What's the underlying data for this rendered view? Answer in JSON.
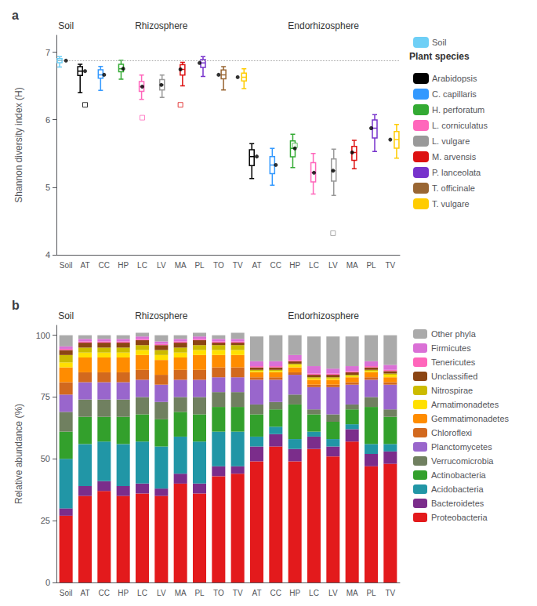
{
  "chart_data": [
    {
      "type": "boxplot",
      "title": "a",
      "ylabel": "Shannon diversity index (H)",
      "categories": [
        "Soil",
        "AT",
        "CC",
        "HP",
        "LC",
        "LV",
        "MA",
        "PL",
        "TO",
        "TV",
        "AT",
        "CC",
        "HP",
        "LC",
        "LV",
        "MA",
        "PL",
        "TV"
      ],
      "sections": [
        {
          "label": "Soil",
          "categories": 1
        },
        {
          "label": "Rhizosphere",
          "categories": 9
        },
        {
          "label": "Endorhizosphere",
          "categories": 8
        }
      ],
      "ylim": [
        4.0,
        7.25
      ],
      "yticks": [
        4,
        5,
        6,
        7
      ],
      "grid": false,
      "legend": "right",
      "legend_title": "Plant species",
      "reference_lines": [
        {
          "y": 6.88,
          "line_style": "dotted"
        }
      ],
      "series": [
        {
          "name": "Soil",
          "color": "#6ECFF6",
          "values": [
            {
              "q1": 6.845,
              "med": 6.875,
              "q3": 6.905,
              "whislo": 6.78,
              "whishi": 6.935,
              "fliers": []
            },
            null,
            null,
            null,
            null,
            null,
            null,
            null,
            null,
            null,
            null,
            null,
            null,
            null,
            null,
            null,
            null,
            null
          ]
        },
        {
          "name": "Arabidopsis",
          "color": "#000000",
          "values": [
            null,
            {
              "q1": 6.655,
              "med": 6.72,
              "q3": 6.785,
              "whislo": 6.4,
              "whishi": 6.82,
              "fliers": [
                6.22
              ]
            },
            null,
            null,
            null,
            null,
            null,
            null,
            null,
            null,
            {
              "q1": 5.32,
              "med": 5.455,
              "q3": 5.555,
              "whislo": 5.13,
              "whishi": 5.645,
              "fliers": []
            },
            null,
            null,
            null,
            null,
            null,
            null,
            null
          ]
        },
        {
          "name": "C. capillaris",
          "color": "#3399FF",
          "values": [
            null,
            null,
            {
              "q1": 6.615,
              "med": 6.665,
              "q3": 6.74,
              "whislo": 6.435,
              "whishi": 6.79,
              "fliers": []
            },
            null,
            null,
            null,
            null,
            null,
            null,
            null,
            null,
            {
              "q1": 5.2,
              "med": 5.33,
              "q3": 5.455,
              "whislo": 5.03,
              "whishi": 5.575,
              "fliers": []
            },
            null,
            null,
            null,
            null,
            null,
            null
          ]
        },
        {
          "name": "H. perforatum",
          "color": "#33AA33",
          "values": [
            null,
            null,
            null,
            {
              "q1": 6.71,
              "med": 6.755,
              "q3": 6.82,
              "whislo": 6.6,
              "whishi": 6.88,
              "fliers": []
            },
            null,
            null,
            null,
            null,
            null,
            null,
            null,
            null,
            {
              "q1": 5.45,
              "med": 5.575,
              "q3": 5.685,
              "whislo": 5.29,
              "whishi": 5.785,
              "fliers": [
                5.62
              ]
            },
            null,
            null,
            null,
            null,
            null
          ]
        },
        {
          "name": "L. corniculatus",
          "color": "#FF66BB",
          "values": [
            null,
            null,
            null,
            null,
            {
              "q1": 6.42,
              "med": 6.49,
              "q3": 6.565,
              "whislo": 6.3,
              "whishi": 6.66,
              "fliers": [
                6.03
              ]
            },
            null,
            null,
            null,
            null,
            null,
            null,
            null,
            null,
            {
              "q1": 5.08,
              "med": 5.215,
              "q3": 5.365,
              "whislo": 4.9,
              "whishi": 5.5,
              "fliers": []
            },
            null,
            null,
            null,
            null
          ]
        },
        {
          "name": "L. vulgare",
          "color": "#999999",
          "values": [
            null,
            null,
            null,
            null,
            null,
            {
              "q1": 6.44,
              "med": 6.515,
              "q3": 6.595,
              "whislo": 6.33,
              "whishi": 6.66,
              "fliers": []
            },
            null,
            null,
            null,
            null,
            null,
            null,
            null,
            null,
            {
              "q1": 5.09,
              "med": 5.245,
              "q3": 5.42,
              "whislo": 4.88,
              "whishi": 5.565,
              "fliers": [
                4.32
              ]
            },
            null,
            null,
            null
          ]
        },
        {
          "name": "M. arvensis",
          "color": "#DD1111",
          "values": [
            null,
            null,
            null,
            null,
            null,
            null,
            {
              "q1": 6.66,
              "med": 6.745,
              "q3": 6.815,
              "whislo": 6.5,
              "whishi": 6.85,
              "fliers": [
                6.22
              ]
            },
            null,
            null,
            null,
            null,
            null,
            null,
            null,
            null,
            {
              "q1": 5.4,
              "med": 5.515,
              "q3": 5.605,
              "whislo": 5.275,
              "whishi": 5.695,
              "fliers": []
            },
            null,
            null
          ]
        },
        {
          "name": "P. lanceolata",
          "color": "#7733CC",
          "values": [
            null,
            null,
            null,
            null,
            null,
            null,
            null,
            {
              "q1": 6.775,
              "med": 6.84,
              "q3": 6.89,
              "whislo": 6.64,
              "whishi": 6.935,
              "fliers": []
            },
            null,
            null,
            null,
            null,
            null,
            null,
            null,
            null,
            {
              "q1": 5.73,
              "med": 5.875,
              "q3": 5.995,
              "whislo": 5.53,
              "whishi": 6.075,
              "fliers": []
            },
            null
          ]
        },
        {
          "name": "T. officinale",
          "color": "#996633",
          "values": [
            null,
            null,
            null,
            null,
            null,
            null,
            null,
            null,
            {
              "q1": 6.605,
              "med": 6.665,
              "q3": 6.735,
              "whislo": 6.44,
              "whishi": 6.785,
              "fliers": []
            },
            null,
            null,
            null,
            null,
            null,
            null,
            null,
            null,
            null
          ]
        },
        {
          "name": "T. vulgare",
          "color": "#FFCC00",
          "values": [
            null,
            null,
            null,
            null,
            null,
            null,
            null,
            null,
            null,
            {
              "q1": 6.575,
              "med": 6.63,
              "q3": 6.69,
              "whislo": 6.46,
              "whishi": 6.755,
              "fliers": []
            },
            null,
            null,
            null,
            null,
            null,
            null,
            null,
            {
              "q1": 5.58,
              "med": 5.705,
              "q3": 5.825,
              "whislo": 5.43,
              "whishi": 5.93,
              "fliers": []
            }
          ]
        }
      ]
    },
    {
      "type": "bar",
      "stacked": true,
      "title": "b",
      "ylabel": "Relative abundance (%)",
      "categories": [
        "Soil",
        "AT",
        "CC",
        "HP",
        "LC",
        "LV",
        "MA",
        "PL",
        "TO",
        "TV",
        "AT",
        "CC",
        "HP",
        "LC",
        "LV",
        "MA",
        "PL",
        "TV"
      ],
      "sections": [
        {
          "label": "Soil",
          "categories": 1
        },
        {
          "label": "Rhizosphere",
          "categories": 9
        },
        {
          "label": "Endorhizosphere",
          "categories": 8
        }
      ],
      "ylim": [
        0,
        104
      ],
      "yticks": [
        0,
        25,
        50,
        75,
        100
      ],
      "grid": false,
      "legend": "right",
      "series": [
        {
          "name": "Proteobacteria",
          "color": "#E31A1C",
          "values": [
            27,
            35,
            37,
            35,
            36,
            35,
            40,
            36,
            43,
            44,
            49,
            55,
            49,
            54,
            51,
            57,
            47,
            48
          ]
        },
        {
          "name": "Bacteroidetes",
          "color": "#7B2D8B",
          "values": [
            3,
            4,
            4,
            4,
            4,
            3,
            4,
            4,
            4,
            3,
            6,
            5,
            5,
            5,
            4,
            5,
            5,
            5
          ]
        },
        {
          "name": "Acidobacteria",
          "color": "#2196A6",
          "values": [
            20,
            17,
            16,
            17,
            17,
            17,
            15,
            17,
            14,
            14,
            4,
            3,
            4,
            2,
            3,
            2,
            4,
            3
          ]
        },
        {
          "name": "Actinobacteria",
          "color": "#33A02C",
          "values": [
            11,
            11,
            10,
            11,
            11,
            11,
            10,
            11,
            10,
            10,
            9,
            7,
            14,
            7,
            7,
            6,
            15,
            11
          ]
        },
        {
          "name": "Verrucomicrobia",
          "color": "#708060",
          "values": [
            8,
            7,
            7,
            7,
            7,
            7,
            6,
            7,
            6,
            6,
            4,
            3,
            4,
            2,
            3,
            2,
            4,
            3
          ]
        },
        {
          "name": "Planctomycetes",
          "color": "#9966CC",
          "values": [
            7,
            7,
            7,
            7,
            7,
            7,
            7,
            7,
            6,
            6,
            10,
            9,
            8,
            9,
            11,
            8,
            7,
            10
          ]
        },
        {
          "name": "Chloroflexi",
          "color": "#D2691E",
          "values": [
            5,
            4,
            4,
            4,
            4,
            4,
            4,
            4,
            4,
            4,
            1,
            1,
            1,
            1,
            1,
            1,
            1,
            1
          ]
        },
        {
          "name": "Gemmatimonadetes",
          "color": "#FF8C00",
          "values": [
            6,
            6,
            6,
            6,
            6,
            6,
            5,
            6,
            5,
            5,
            2,
            2,
            2,
            2,
            2,
            2,
            2,
            2
          ]
        },
        {
          "name": "Armatimonadetes",
          "color": "#FFE000",
          "values": [
            2,
            2,
            2,
            2,
            2,
            2,
            2,
            2,
            2,
            2,
            0.5,
            0.5,
            1,
            0.5,
            0.5,
            0.5,
            0.5,
            1
          ]
        },
        {
          "name": "Nitrospirae",
          "color": "#CCBB00",
          "values": [
            3,
            2,
            2,
            2,
            2,
            2,
            2,
            2,
            2,
            2,
            0.5,
            0.5,
            0.5,
            0.5,
            0.5,
            0.5,
            0.5,
            0.5
          ]
        },
        {
          "name": "Unclassified",
          "color": "#8B4513",
          "values": [
            2,
            2,
            2,
            2,
            2,
            2,
            2,
            2,
            1,
            1,
            1,
            1,
            1,
            1,
            1,
            1,
            1,
            1
          ]
        },
        {
          "name": "Tenericutes",
          "color": "#FF66BB",
          "values": [
            0.5,
            0.5,
            0.5,
            0.5,
            0.5,
            0.5,
            0.5,
            0.5,
            0.5,
            0.5,
            0.5,
            0.5,
            0.5,
            0.5,
            0.5,
            0.5,
            0.5,
            0.5
          ]
        },
        {
          "name": "Firmicutes",
          "color": "#DA70D6",
          "values": [
            1,
            1,
            1,
            1,
            1,
            1,
            1,
            1,
            1,
            1,
            2,
            2,
            2,
            3,
            2,
            2,
            2,
            2
          ]
        },
        {
          "name": "Other phyla",
          "color": "#AAAAAA",
          "values": [
            4.5,
            1.5,
            1.5,
            1.5,
            1.5,
            2.5,
            1.5,
            1.5,
            1.5,
            2.5,
            10,
            10.5,
            8,
            12,
            13,
            12,
            10.5,
            12
          ]
        }
      ]
    }
  ]
}
